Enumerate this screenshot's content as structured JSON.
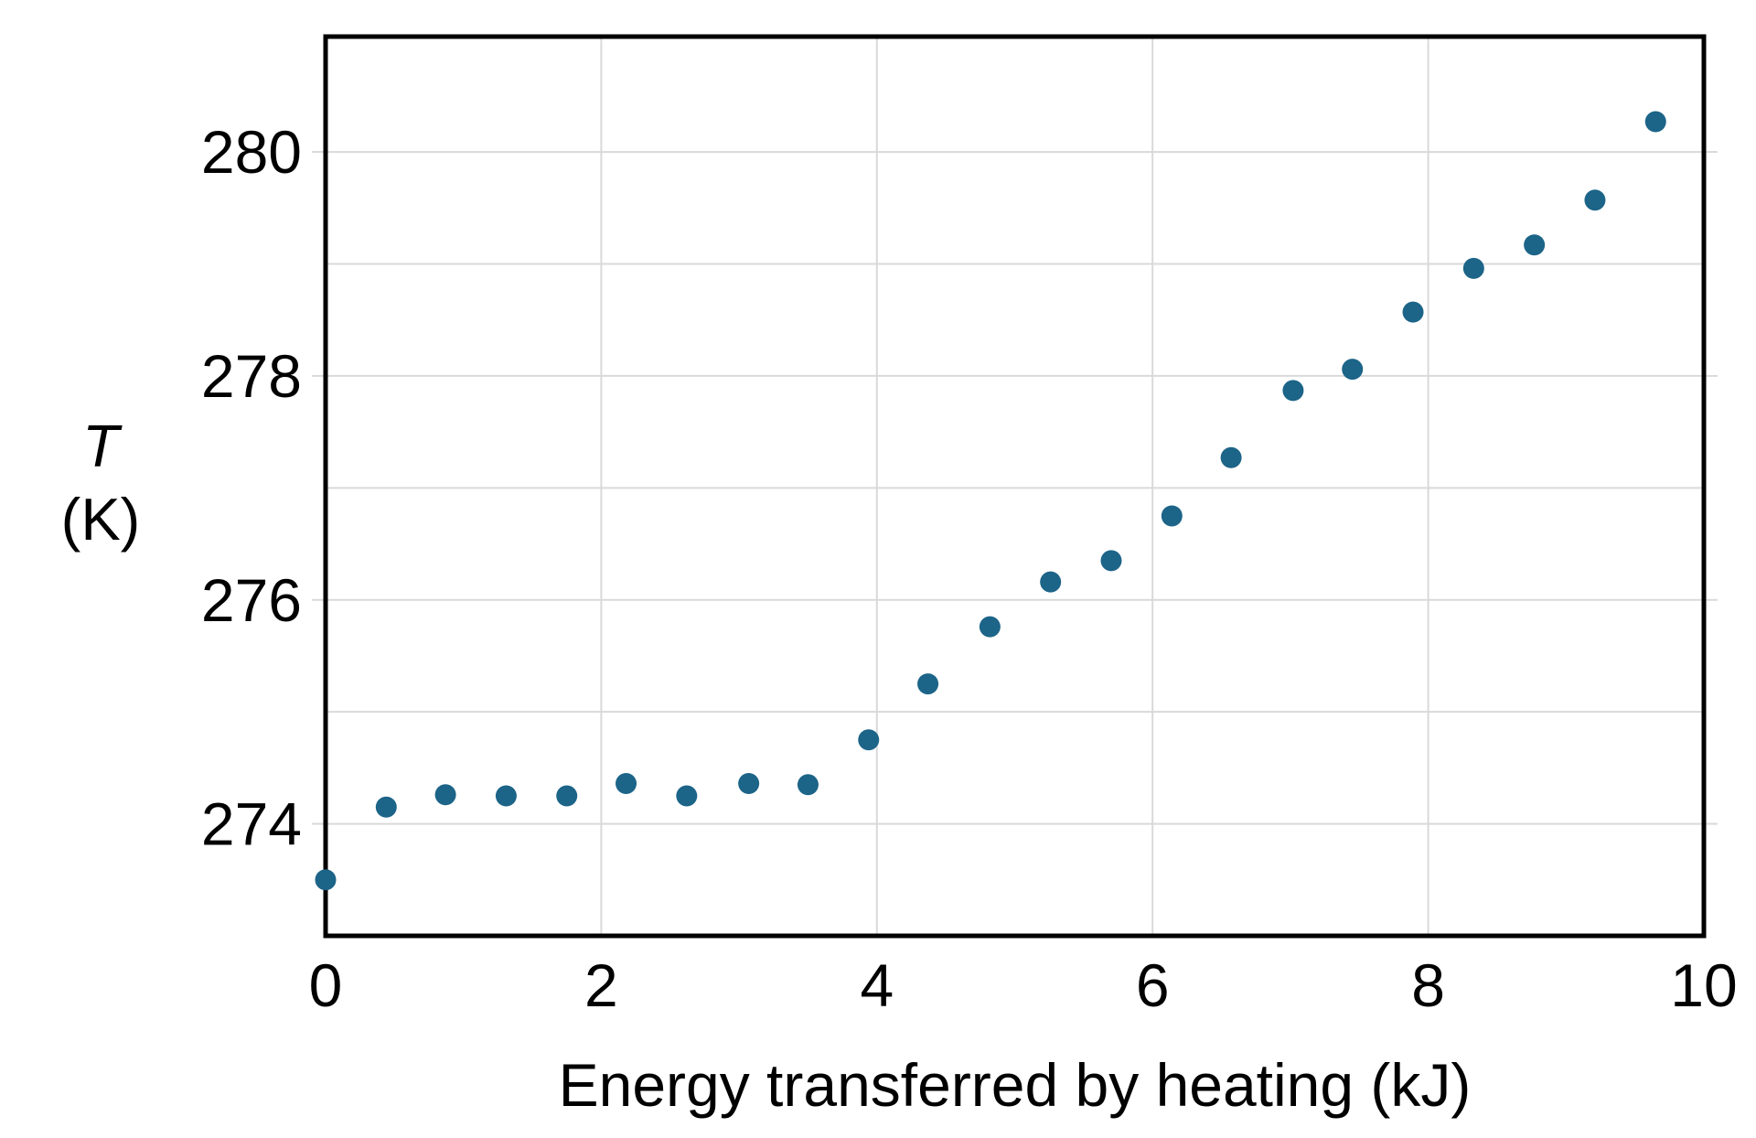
{
  "chart_data": {
    "type": "scatter",
    "title": "",
    "xlabel": "Energy transferred by heating (kJ)",
    "ylabel_line1": "T",
    "ylabel_line2": "(K)",
    "x": [
      0.0,
      0.44,
      0.87,
      1.31,
      1.75,
      2.18,
      2.62,
      3.07,
      3.5,
      3.94,
      4.37,
      4.82,
      5.26,
      5.7,
      6.14,
      6.57,
      7.02,
      7.45,
      7.89,
      8.33,
      8.77,
      9.21,
      9.65
    ],
    "y": [
      273.5,
      274.15,
      274.26,
      274.25,
      274.25,
      274.36,
      274.25,
      274.36,
      274.35,
      274.75,
      275.25,
      275.76,
      276.16,
      276.35,
      276.75,
      277.27,
      277.87,
      278.06,
      278.57,
      278.96,
      279.17,
      279.57,
      280.27
    ],
    "xlim": [
      0,
      10
    ],
    "ylim": [
      273,
      281.03
    ],
    "xtick_values": [
      0,
      2,
      4,
      6,
      8,
      10
    ],
    "xtick_labels": [
      "0",
      "2",
      "4",
      "6",
      "8",
      "10"
    ],
    "ytick_values": [
      274,
      276,
      278,
      280
    ],
    "ytick_labels": [
      "274",
      "276",
      "278",
      "280"
    ],
    "xgrid_values": [
      2,
      4,
      6,
      8
    ],
    "ygrid_values": [
      274,
      275,
      276,
      277,
      278,
      279,
      280
    ],
    "grid": true,
    "legend": "none",
    "marker": {
      "shape": "circle",
      "color": "#1c6488",
      "radius_px": 11.5
    },
    "grid_color": "#d9d9d9",
    "axis_color": "#000000",
    "text_color": "#000000"
  }
}
